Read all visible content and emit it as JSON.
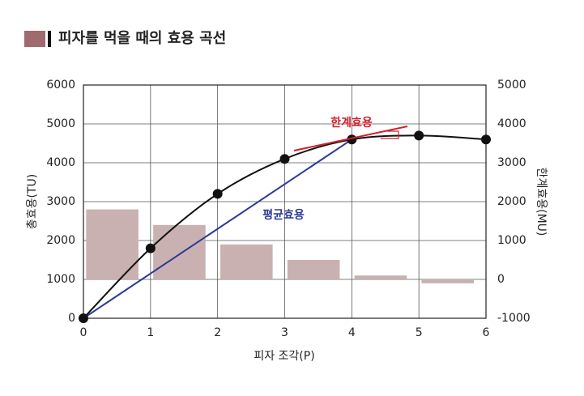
{
  "chart_data": {
    "type": "line-bar",
    "title": "피자를 먹을 때의 효용 곡선",
    "x_label": "피자 조각(P)",
    "y_label": "총효용(TU)",
    "y2_label": "한계효용(MU)",
    "annotations": [
      "한계효용",
      "평균효용"
    ],
    "xlim": [
      0,
      6
    ],
    "xticks": [
      0,
      1,
      2,
      3,
      4,
      5,
      6
    ],
    "ylim": [
      0,
      6000
    ],
    "yticks": [
      0,
      1000,
      2000,
      3000,
      4000,
      5000,
      6000
    ],
    "y2lim": [
      -1000,
      5000
    ],
    "y2ticks": [
      -1000,
      0,
      1000,
      2000,
      3000,
      4000,
      5000
    ],
    "grid": true,
    "series": [
      {
        "name": "총효용(TU)",
        "type": "line",
        "color": "#111111",
        "x": [
          0,
          1,
          2,
          3,
          4,
          5,
          6
        ],
        "values": [
          0,
          1800,
          3200,
          4100,
          4600,
          4700,
          4600
        ]
      },
      {
        "name": "한계효용(MU)",
        "type": "bar",
        "axis": "y2",
        "color": "#c9b1b1",
        "x": [
          1,
          2,
          3,
          4,
          5,
          6
        ],
        "values": [
          1800,
          1400,
          900,
          500,
          100,
          -100
        ]
      }
    ]
  }
}
